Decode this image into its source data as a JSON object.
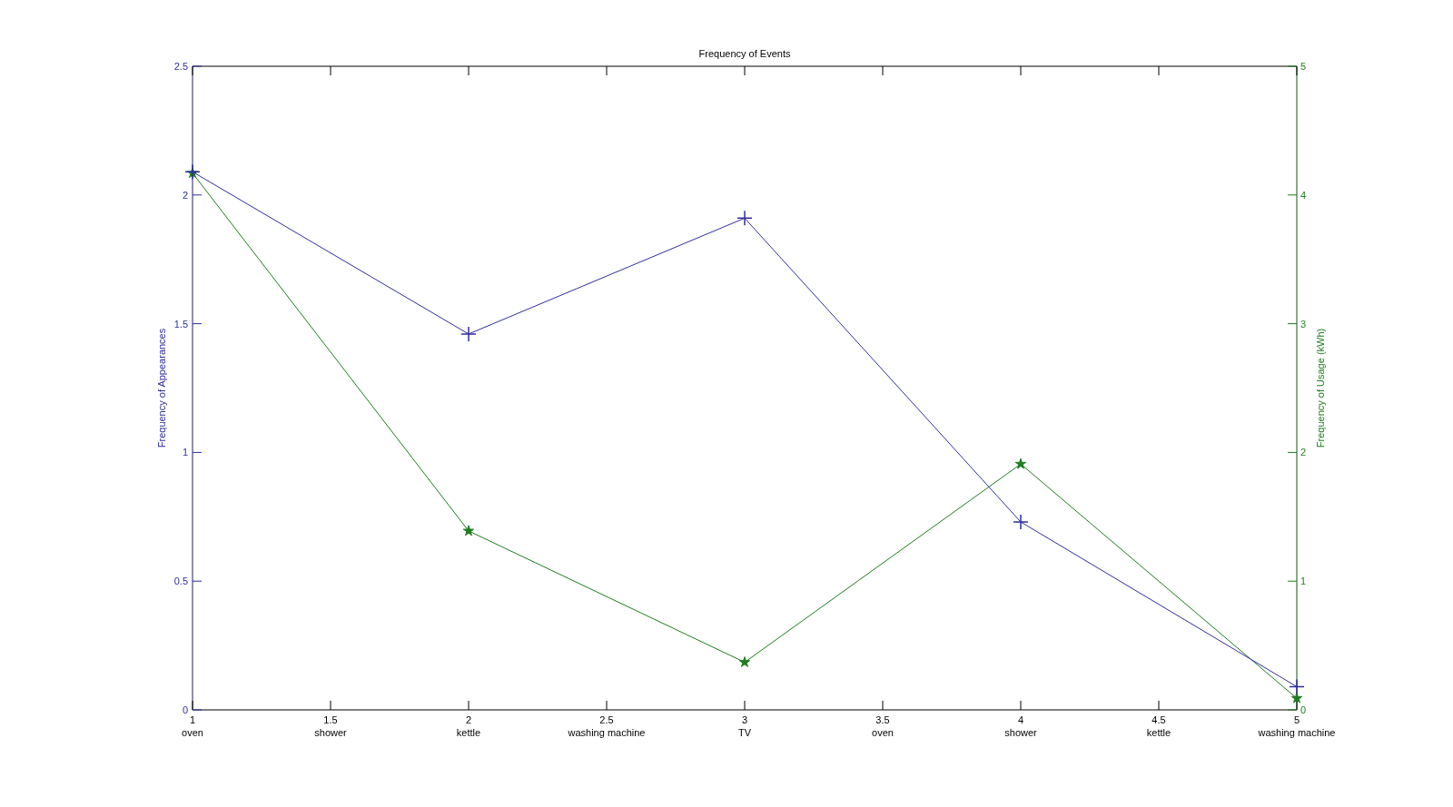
{
  "chart_data": {
    "type": "line",
    "title": "Frequency of Events",
    "ylabel": "Frequency of Appearances",
    "y2label": "Frequency of Usage (kWh)",
    "x": [
      1,
      2,
      3,
      4,
      5
    ],
    "series": [
      {
        "color": "#2e2ea0",
        "values": [
          2.09,
          1.46,
          1.91,
          0.73,
          0.09
        ],
        "marker": "cross"
      },
      {
        "color": "#1e7d1e",
        "values": [
          4.17,
          1.39,
          0.37,
          1.91,
          0.09
        ],
        "marker": "star",
        "axis": "y2"
      }
    ],
    "xlim": [
      1,
      5
    ],
    "xticks": [
      1,
      1.5,
      2,
      2.5,
      3,
      3.5,
      4,
      4.5,
      5
    ],
    "annotations": [
      "oven",
      "shower",
      "kettle",
      "washing machine",
      "TV",
      "oven",
      "shower",
      "kettle",
      "washing machine"
    ],
    "ylim": [
      0,
      2.5
    ],
    "yticks": [
      0,
      0.5,
      1,
      1.5,
      2,
      2.5
    ],
    "y2lim": [
      0,
      5
    ],
    "y2ticks": [
      0,
      1,
      2,
      3,
      4,
      5
    ],
    "grid": false
  }
}
